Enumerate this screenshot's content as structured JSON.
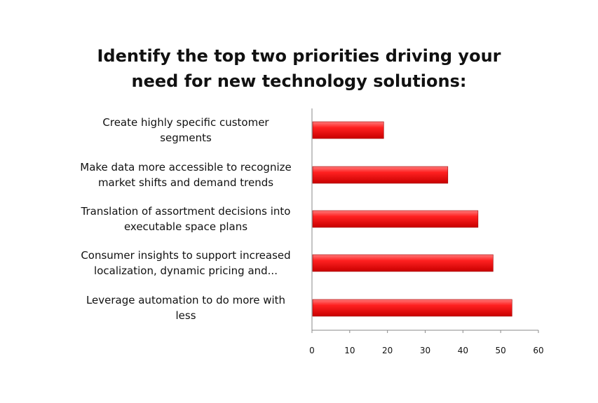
{
  "chart_data": {
    "type": "bar",
    "orientation": "horizontal",
    "title_lines": [
      "Identify the top two priorities driving your",
      "need for new technology solutions:"
    ],
    "categories": [
      [
        "Create highly specific customer",
        "segments"
      ],
      [
        "Make data more accessible to recognize",
        "market shifts and demand trends"
      ],
      [
        "Translation of assortment decisions into",
        "executable space plans"
      ],
      [
        "Consumer insights to support  increased",
        "localization, dynamic pricing and..."
      ],
      [
        "Leverage automation to do more with",
        "less"
      ]
    ],
    "values": [
      19,
      36,
      44,
      48,
      53
    ],
    "xlim": [
      0,
      60
    ],
    "xticks": [
      "0",
      "10",
      "20",
      "30",
      "40",
      "50",
      "60"
    ],
    "bar_color": "#ee1111",
    "grid": false,
    "legend": "none"
  }
}
